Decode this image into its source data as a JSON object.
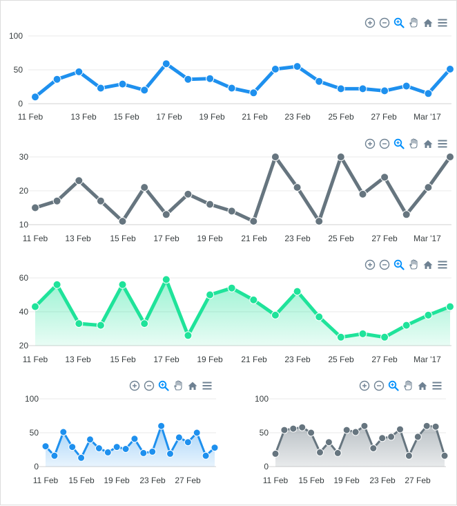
{
  "toolbar_icons": [
    "zoom-in-icon",
    "zoom-out-icon",
    "magnifier-icon",
    "pan-hand-icon",
    "home-icon",
    "menu-icon"
  ],
  "chart_data": [
    {
      "type": "line",
      "color": "#1E90EE",
      "ylim": [
        0,
        100
      ],
      "yticks": [
        "0",
        "50",
        "100"
      ],
      "xticks": [
        "11 Feb",
        "13 Feb",
        "15 Feb",
        "17 Feb",
        "19 Feb",
        "21 Feb",
        "23 Feb",
        "25 Feb",
        "27 Feb",
        "Mar '17"
      ],
      "series": [
        {
          "values": [
            10,
            36,
            47,
            23,
            29,
            20,
            59,
            36,
            37,
            23,
            16,
            51,
            55,
            33,
            22,
            22,
            19,
            26,
            15,
            51
          ]
        }
      ]
    },
    {
      "type": "line",
      "color": "#66757F",
      "ylim": [
        10,
        30
      ],
      "yticks": [
        "10",
        "20",
        "30"
      ],
      "xticks": [
        "11 Feb",
        "13 Feb",
        "15 Feb",
        "17 Feb",
        "19 Feb",
        "21 Feb",
        "23 Feb",
        "25 Feb",
        "27 Feb",
        "Mar '17"
      ],
      "series": [
        {
          "values": [
            15,
            17,
            23,
            17,
            11,
            21,
            13,
            19,
            16,
            14,
            11,
            30,
            21,
            11,
            30,
            19,
            24,
            13,
            21,
            30
          ]
        }
      ]
    },
    {
      "type": "area",
      "color": "#1FE39A",
      "ylim": [
        20,
        60
      ],
      "yticks": [
        "20",
        "40",
        "60"
      ],
      "xticks": [
        "11 Feb",
        "13 Feb",
        "15 Feb",
        "17 Feb",
        "19 Feb",
        "21 Feb",
        "23 Feb",
        "25 Feb",
        "27 Feb",
        "Mar '17"
      ],
      "series": [
        {
          "values": [
            43,
            56,
            33,
            32,
            56,
            33,
            59,
            26,
            50,
            54,
            47,
            38,
            52,
            37,
            25,
            27,
            25,
            32,
            38,
            43
          ]
        }
      ]
    },
    {
      "type": "area",
      "color": "#1E90EE",
      "ylim": [
        0,
        100
      ],
      "yticks": [
        "0",
        "50",
        "100"
      ],
      "xticks": [
        "11 Feb",
        "15 Feb",
        "19 Feb",
        "23 Feb",
        "27 Feb"
      ],
      "series": [
        {
          "values": [
            30,
            16,
            51,
            29,
            13,
            40,
            27,
            21,
            29,
            26,
            41,
            20,
            22,
            60,
            19,
            43,
            36,
            50,
            16,
            28
          ]
        }
      ]
    },
    {
      "type": "area",
      "color": "#66757F",
      "ylim": [
        0,
        100
      ],
      "yticks": [
        "0",
        "50",
        "100"
      ],
      "xticks": [
        "11 Feb",
        "15 Feb",
        "19 Feb",
        "23 Feb",
        "27 Feb"
      ],
      "series": [
        {
          "values": [
            19,
            54,
            56,
            58,
            50,
            21,
            36,
            20,
            54,
            51,
            60,
            27,
            42,
            44,
            55,
            16,
            44,
            60,
            59,
            16
          ]
        }
      ]
    }
  ]
}
